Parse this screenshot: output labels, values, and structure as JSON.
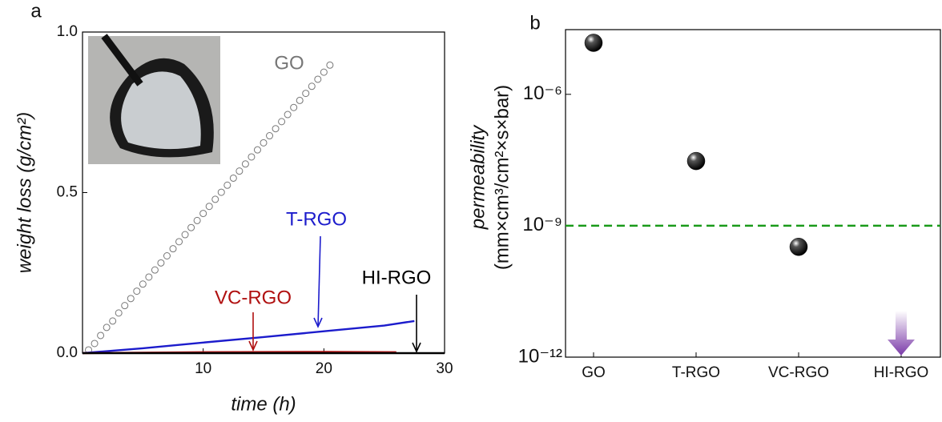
{
  "chart_data": [
    {
      "type": "line",
      "panel": "a",
      "xlabel": "time (h)",
      "ylabel": "weight loss (g/cm²)",
      "xlim": [
        0,
        30
      ],
      "xticks": [
        10,
        20,
        30
      ],
      "ylim": [
        0,
        1
      ],
      "yticks": [
        {
          "value": 0,
          "label": "0.0"
        },
        {
          "value": 0.5,
          "label": "0.5"
        },
        {
          "value": 1,
          "label": "1.0"
        }
      ],
      "series": [
        {
          "name": "GO",
          "color": "#777777",
          "marker": "circle",
          "x": [
            0.5,
            1,
            1.5,
            2,
            2.5,
            3,
            3.5,
            4,
            4.5,
            5,
            5.5,
            6,
            6.5,
            7,
            7.5,
            8,
            8.5,
            9,
            9.5,
            10,
            10.5,
            11,
            11.5,
            12,
            12.5,
            13,
            13.5,
            14,
            14.5,
            15,
            15.5,
            16,
            16.5,
            17,
            17.5,
            18,
            18.5,
            19,
            19.5,
            20,
            20.5
          ],
          "values": [
            0.01,
            0.03,
            0.055,
            0.08,
            0.1,
            0.125,
            0.148,
            0.17,
            0.193,
            0.215,
            0.237,
            0.259,
            0.281,
            0.303,
            0.325,
            0.347,
            0.369,
            0.391,
            0.413,
            0.435,
            0.457,
            0.479,
            0.501,
            0.523,
            0.545,
            0.567,
            0.589,
            0.611,
            0.633,
            0.655,
            0.677,
            0.699,
            0.721,
            0.743,
            0.765,
            0.787,
            0.809,
            0.831,
            0.853,
            0.875,
            0.897
          ]
        },
        {
          "name": "T-RGO",
          "color": "#1c1ccc",
          "x": [
            0,
            5,
            10,
            15,
            20,
            25,
            27.5
          ],
          "values": [
            0,
            0.015,
            0.033,
            0.05,
            0.068,
            0.086,
            0.1
          ]
        },
        {
          "name": "VC-RGO",
          "color": "#b01010",
          "x": [
            0,
            10,
            20,
            26
          ],
          "values": [
            0,
            0.003,
            0.004,
            0.003
          ]
        },
        {
          "name": "HI-RGO",
          "color": "#000000",
          "x": [
            0,
            30
          ],
          "values": [
            0,
            0
          ]
        }
      ]
    },
    {
      "type": "scatter",
      "panel": "b",
      "ylabel": [
        "permeability",
        "(mm×cm³/cm²×s×bar)"
      ],
      "categories": [
        "GO",
        "T-RGO",
        "VC-RGO",
        "HI-RGO"
      ],
      "values": [
        1.5e-05,
        3e-08,
        3.3e-10,
        null
      ],
      "color": "#000000",
      "log_y": true,
      "ylim": [
        1e-12,
        3e-05
      ],
      "yticks": [
        {
          "value": 1e-12,
          "label": "10⁻¹²"
        },
        {
          "value": 1e-09,
          "label": "10⁻⁹"
        },
        {
          "value": 1e-06,
          "label": "10⁻⁶"
        }
      ],
      "reference_line": 1e-09,
      "reference_color": "#1a9a1a"
    }
  ]
}
